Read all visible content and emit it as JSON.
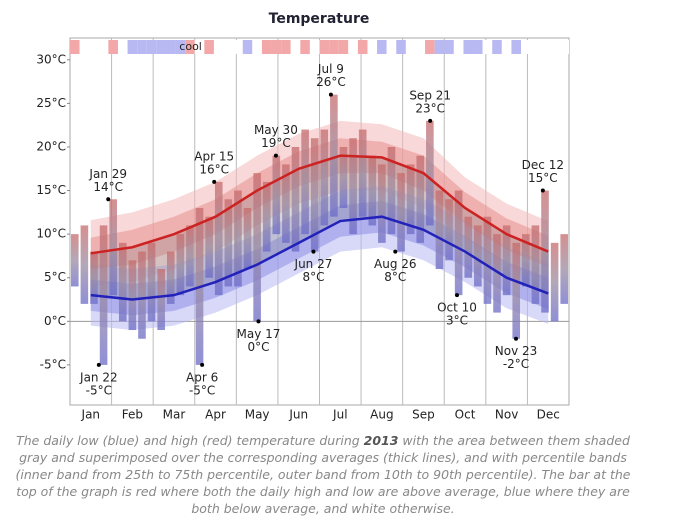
{
  "chart_data": {
    "type": "temperature-range",
    "title": "Temperature",
    "strip_label": "cool",
    "categories": [
      "Jan",
      "Feb",
      "Mar",
      "Apr",
      "May",
      "Jun",
      "Jul",
      "Aug",
      "Sep",
      "Oct",
      "Nov",
      "Dec"
    ],
    "ylim": [
      -9.6,
      32.5
    ],
    "yticks": [
      {
        "value": 30,
        "label": "30°C"
      },
      {
        "value": 25,
        "label": "25°C"
      },
      {
        "value": 20,
        "label": "20°C"
      },
      {
        "value": 15,
        "label": "15°C"
      },
      {
        "value": 10,
        "label": "10°C"
      },
      {
        "value": 5,
        "label": "5°C"
      },
      {
        "value": 0,
        "label": "0°C"
      },
      {
        "value": -5,
        "label": "-5°C"
      }
    ],
    "daily": {
      "high": {
        "color": "#c87070",
        "values": [
          10,
          11,
          8,
          11,
          14,
          9,
          7,
          8,
          9,
          6,
          8,
          10,
          11,
          13,
          12,
          16,
          14,
          15,
          13,
          17,
          16,
          19,
          18,
          20,
          22,
          21,
          22,
          26,
          20,
          21,
          22,
          19,
          18,
          20,
          17,
          18,
          19,
          23,
          15,
          14,
          15,
          12,
          11,
          12,
          10,
          11,
          9,
          10,
          11,
          15,
          9,
          10
        ]
      },
      "low": {
        "color": "#7070c8",
        "values": [
          4,
          2,
          2,
          -5,
          3,
          0,
          -1,
          -2,
          0,
          -1,
          2,
          3,
          4,
          -5,
          5,
          3,
          4,
          4,
          6,
          0,
          8,
          10,
          9,
          8,
          10,
          8,
          11,
          12,
          13,
          10,
          12,
          11,
          9,
          10,
          8,
          10,
          9,
          11,
          6,
          7,
          3,
          5,
          4,
          2,
          1,
          3,
          -2,
          4,
          2,
          1,
          0,
          2
        ]
      }
    },
    "averages": {
      "high": {
        "color": "#cc2222",
        "values": [
          7.8,
          8.5,
          10,
          12,
          15,
          17.5,
          19,
          18.8,
          17,
          13,
          10,
          8
        ],
        "p10": [
          4,
          4.5,
          6,
          8,
          11,
          13.5,
          15,
          15,
          13,
          9.5,
          6.5,
          4.5
        ],
        "p25": [
          6,
          6.5,
          8,
          10,
          13,
          15.5,
          17,
          17,
          15,
          11.2,
          8.2,
          6.2
        ],
        "p75": [
          9.6,
          10.5,
          12,
          14,
          17,
          19.5,
          21,
          20.6,
          19,
          14.8,
          11.8,
          9.8
        ],
        "p90": [
          11.6,
          12.5,
          14,
          16,
          19,
          21.5,
          23,
          22.6,
          21,
          16.5,
          13.5,
          11.5
        ]
      },
      "low": {
        "color": "#2222bb",
        "values": [
          3,
          2.5,
          3,
          4.5,
          6.5,
          9,
          11.5,
          12,
          10.5,
          8,
          5,
          3.2
        ],
        "p10": [
          -0.5,
          -1,
          -0.5,
          1,
          3,
          5.5,
          8,
          8.5,
          7,
          4.5,
          1.5,
          -0.3
        ],
        "p25": [
          1.2,
          0.7,
          1.2,
          2.7,
          4.7,
          7.2,
          9.7,
          10.2,
          8.7,
          6.2,
          3.2,
          1.4
        ],
        "p75": [
          4.8,
          4.3,
          4.8,
          6.3,
          8.3,
          10.8,
          13.3,
          13.8,
          12.3,
          9.8,
          6.8,
          5
        ],
        "p90": [
          6.5,
          6,
          6.5,
          8,
          10,
          12.5,
          15,
          15.5,
          14,
          11.5,
          8.5,
          6.7
        ]
      }
    },
    "annotations": [
      {
        "date": "Jan 29",
        "value": 14,
        "label": "14°C",
        "position": "above"
      },
      {
        "date": "Jan 22",
        "value": -5,
        "label": "-5°C",
        "position": "below"
      },
      {
        "date": "Apr 15",
        "value": 16,
        "label": "16°C",
        "position": "above"
      },
      {
        "date": "Apr 6",
        "value": -5,
        "label": "-5°C",
        "position": "below"
      },
      {
        "date": "May 30",
        "value": 19,
        "label": "19°C",
        "position": "above"
      },
      {
        "date": "May 17",
        "value": 0,
        "label": "0°C",
        "position": "below"
      },
      {
        "date": "Jul 9",
        "value": 26,
        "label": "26°C",
        "position": "above"
      },
      {
        "date": "Jun 27",
        "value": 8,
        "label": "8°C",
        "position": "below"
      },
      {
        "date": "Sep 21",
        "value": 23,
        "label": "23°C",
        "position": "above"
      },
      {
        "date": "Aug 26",
        "value": 8,
        "label": "8°C",
        "position": "below"
      },
      {
        "date": "Oct 10",
        "value": 3,
        "label": "3°C",
        "position": "below"
      },
      {
        "date": "Dec 12",
        "value": 15,
        "label": "15°C",
        "position": "above"
      },
      {
        "date": "Nov 23",
        "value": -2,
        "label": "-2°C",
        "position": "below"
      }
    ],
    "caption": [
      "The daily low (blue) and high (red) temperature during ",
      "2013",
      " with the area between them shaded gray and superimposed over the corresponding averages (thick lines), and with percentile bands (inner band from 25th to 75th percentile, outer band from 10th to 90th percentile). The bar at the top of the graph is red where both the daily high and low are above average, blue where they are both below average, and white otherwise."
    ]
  }
}
